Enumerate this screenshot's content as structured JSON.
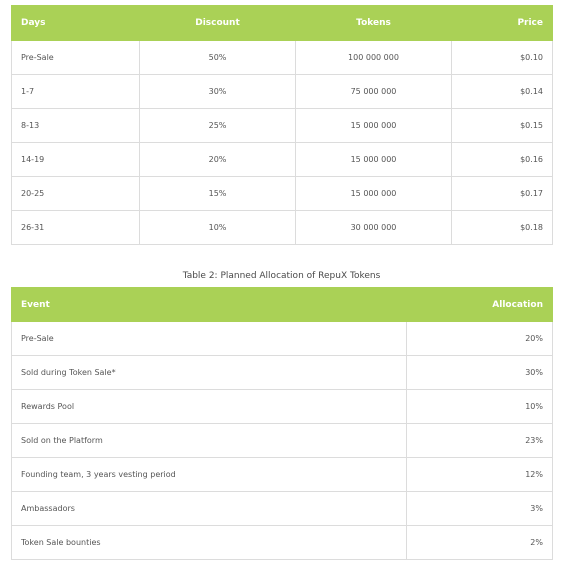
{
  "table1": {
    "headers": {
      "days": "Days",
      "discount": "Discount",
      "tokens": "Tokens",
      "price": "Price"
    },
    "rows": [
      {
        "days": "Pre-Sale",
        "discount": "50%",
        "tokens": "100 000 000",
        "price": "$0.10"
      },
      {
        "days": "1-7",
        "discount": "30%",
        "tokens": "75 000 000",
        "price": "$0.14"
      },
      {
        "days": "8-13",
        "discount": "25%",
        "tokens": "15 000 000",
        "price": "$0.15"
      },
      {
        "days": "14-19",
        "discount": "20%",
        "tokens": "15 000 000",
        "price": "$0.16"
      },
      {
        "days": "20-25",
        "discount": "15%",
        "tokens": "15 000 000",
        "price": "$0.17"
      },
      {
        "days": "26-31",
        "discount": "10%",
        "tokens": "30 000 000",
        "price": "$0.18"
      }
    ]
  },
  "caption": "Table 2: Planned Allocation of RepuX Tokens",
  "table2": {
    "headers": {
      "event": "Event",
      "allocation": "Allocation"
    },
    "rows": [
      {
        "event": "Pre-Sale",
        "allocation": "20%"
      },
      {
        "event": "Sold during Token Sale*",
        "allocation": "30%"
      },
      {
        "event": "Rewards Pool",
        "allocation": "10%"
      },
      {
        "event": "Sold on the Platform",
        "allocation": "23%"
      },
      {
        "event": "Founding team, 3 years vesting period",
        "allocation": "12%"
      },
      {
        "event": "Ambassadors",
        "allocation": "3%"
      },
      {
        "event": "Token Sale bounties",
        "allocation": "2%"
      }
    ]
  },
  "colors": {
    "header_bg": "#aad156",
    "header_text": "#ffffff",
    "border": "#dcdcdc"
  }
}
